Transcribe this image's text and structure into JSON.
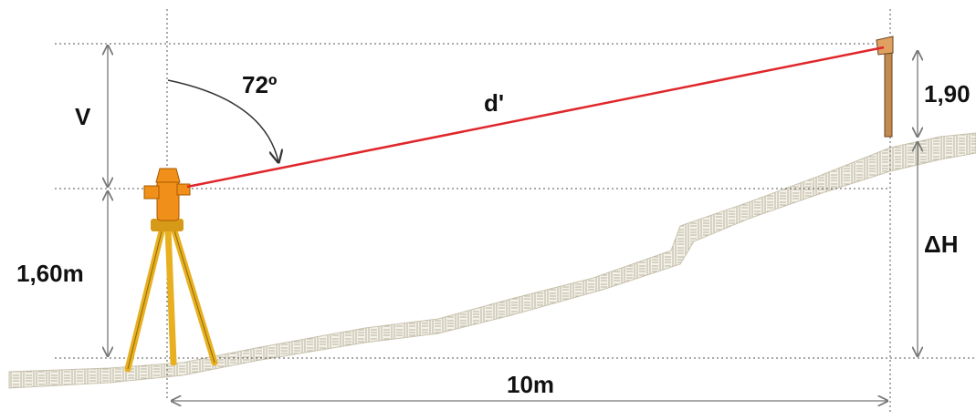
{
  "labels": {
    "angle": "72º",
    "vertical": "V",
    "slope_distance": "d'",
    "staff_height": "1,90",
    "instrument_height": "1,60m",
    "height_difference": "ΔH",
    "horizontal_distance": "10m"
  }
}
